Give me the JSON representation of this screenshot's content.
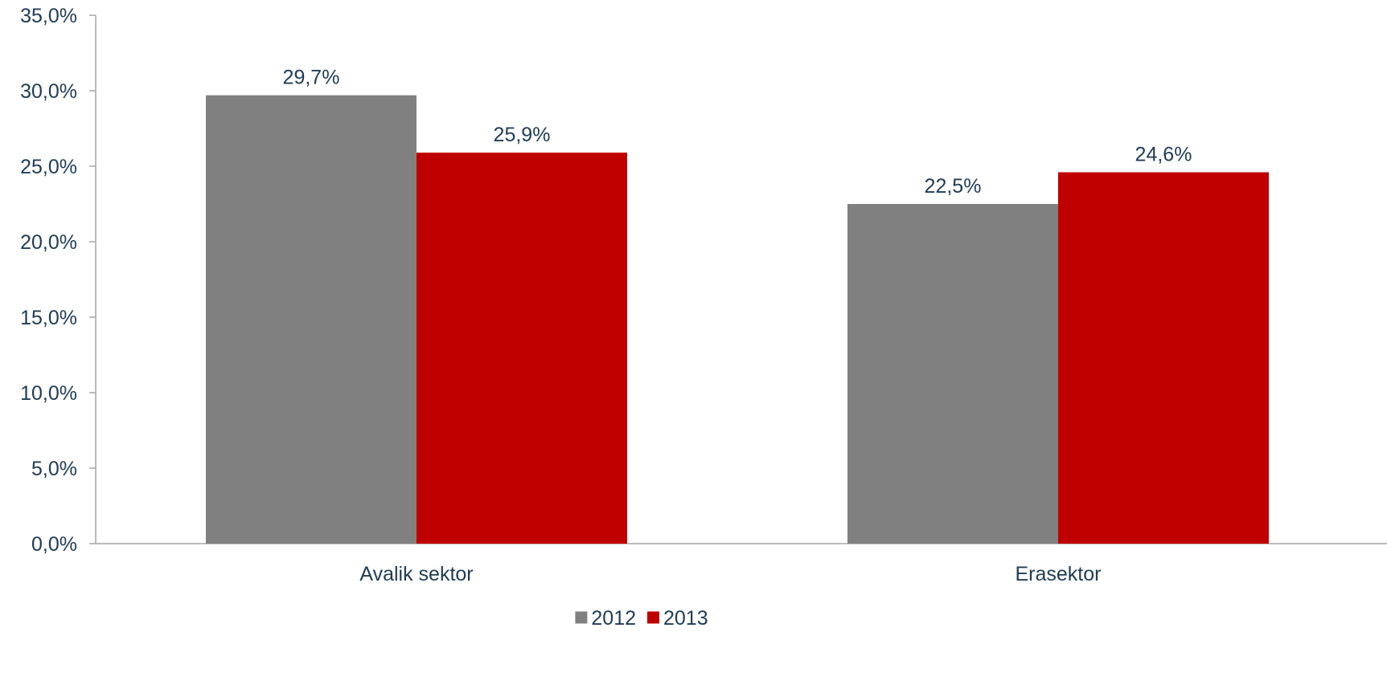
{
  "chart_data": {
    "type": "bar",
    "categories": [
      "Avalik sektor",
      "Erasektor"
    ],
    "series": [
      {
        "name": "2012",
        "values": [
          29.7,
          22.5
        ],
        "labels": [
          "29,7%",
          "22,5%"
        ],
        "color": "#808080"
      },
      {
        "name": "2013",
        "values": [
          25.9,
          24.6
        ],
        "labels": [
          "25,9%",
          "24,6%"
        ],
        "color": "#C00000"
      }
    ],
    "ylim": [
      0,
      35
    ],
    "yticks": [
      0,
      5,
      10,
      15,
      20,
      25,
      30,
      35
    ],
    "ytick_labels": [
      "0,0%",
      "5,0%",
      "10,0%",
      "15,0%",
      "20,0%",
      "25,0%",
      "30,0%",
      "35,0%"
    ],
    "title": "",
    "xlabel": "",
    "ylabel": "",
    "grid": false,
    "legend_position": "bottom",
    "text_color": "#1F3B57",
    "axis_color": "#A6A6A6"
  }
}
